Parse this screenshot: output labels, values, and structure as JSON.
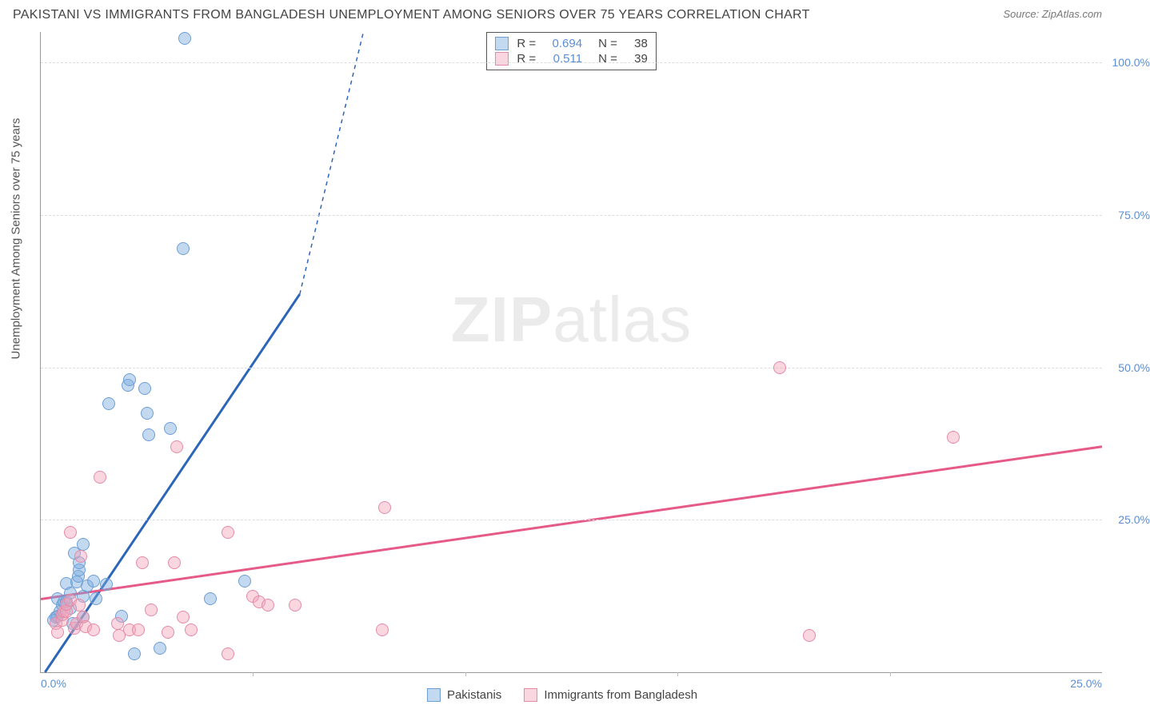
{
  "header": {
    "title": "PAKISTANI VS IMMIGRANTS FROM BANGLADESH UNEMPLOYMENT AMONG SENIORS OVER 75 YEARS CORRELATION CHART",
    "source": "Source: ZipAtlas.com"
  },
  "chart": {
    "type": "scatter",
    "ylabel": "Unemployment Among Seniors over 75 years",
    "xlim": [
      0,
      25
    ],
    "ylim": [
      0,
      105
    ],
    "x_tick_labels": [
      "0.0%",
      "25.0%"
    ],
    "x_tick_positions": [
      0,
      25
    ],
    "x_minor_ticks": [
      5,
      10,
      15,
      20
    ],
    "y_tick_labels": [
      "25.0%",
      "50.0%",
      "75.0%",
      "100.0%"
    ],
    "y_tick_positions": [
      25,
      50,
      75,
      100
    ],
    "background_color": "#ffffff",
    "grid_color_h": "#dddddd",
    "grid_color_v": "#eeeeee",
    "axis_color": "#999999",
    "marker_radius": 8,
    "marker_border_width": 1.5,
    "series": [
      {
        "name": "Pakistanis",
        "fill": "rgba(122,170,222,0.45)",
        "stroke": "#6d9fd4",
        "trend_color": "#2d66b8",
        "trend_width": 3,
        "trend": {
          "x1": 0.1,
          "y1": 0,
          "x2": 6.1,
          "y2": 62,
          "dash_to_x": 7.6,
          "dash_to_y": 105
        },
        "R": "0.694",
        "N": "38",
        "points": [
          [
            0.3,
            8.5
          ],
          [
            0.35,
            9.0
          ],
          [
            0.4,
            9.2
          ],
          [
            0.4,
            12.0
          ],
          [
            0.45,
            10.0
          ],
          [
            0.5,
            11.0
          ],
          [
            0.55,
            11.5
          ],
          [
            0.6,
            11.5
          ],
          [
            0.6,
            14.5
          ],
          [
            0.7,
            13.0
          ],
          [
            0.7,
            10.5
          ],
          [
            0.75,
            8.0
          ],
          [
            0.8,
            19.5
          ],
          [
            0.85,
            14.8
          ],
          [
            0.88,
            15.7
          ],
          [
            0.9,
            16.8
          ],
          [
            0.9,
            17.9
          ],
          [
            1.0,
            21.0
          ],
          [
            1.0,
            12.5
          ],
          [
            1.0,
            9.0
          ],
          [
            1.1,
            14.2
          ],
          [
            1.25,
            15.0
          ],
          [
            1.3,
            12.0
          ],
          [
            1.55,
            14.4
          ],
          [
            1.6,
            44.0
          ],
          [
            1.9,
            9.2
          ],
          [
            2.05,
            47.0
          ],
          [
            2.1,
            48.0
          ],
          [
            2.2,
            3.0
          ],
          [
            2.45,
            46.5
          ],
          [
            2.5,
            42.5
          ],
          [
            2.55,
            39.0
          ],
          [
            2.8,
            4.0
          ],
          [
            3.05,
            40.0
          ],
          [
            3.35,
            69.5
          ],
          [
            3.4,
            104.0
          ],
          [
            4.0,
            12.0
          ],
          [
            4.8,
            15.0
          ]
        ]
      },
      {
        "name": "Immigrants from Bangladesh",
        "fill": "rgba(243,165,186,0.45)",
        "stroke": "#e48aa5",
        "trend_color": "#e65a87",
        "trend_width": 3,
        "trend": {
          "x1": 0,
          "y1": 12,
          "x2": 25,
          "y2": 37
        },
        "R": "0.511",
        "N": "39",
        "points": [
          [
            0.35,
            8.0
          ],
          [
            0.4,
            6.5
          ],
          [
            0.5,
            8.5
          ],
          [
            0.5,
            9.5
          ],
          [
            0.55,
            10.0
          ],
          [
            0.6,
            10.0
          ],
          [
            0.6,
            11.2
          ],
          [
            0.7,
            11.8
          ],
          [
            0.7,
            23.0
          ],
          [
            0.8,
            7.2
          ],
          [
            0.85,
            8.0
          ],
          [
            0.9,
            11.0
          ],
          [
            0.95,
            19.0
          ],
          [
            1.0,
            9.0
          ],
          [
            1.05,
            7.5
          ],
          [
            1.25,
            7.0
          ],
          [
            1.4,
            32.0
          ],
          [
            1.8,
            8.0
          ],
          [
            1.85,
            6.0
          ],
          [
            2.1,
            7.0
          ],
          [
            2.3,
            7.0
          ],
          [
            2.4,
            18.0
          ],
          [
            2.6,
            10.2
          ],
          [
            3.0,
            6.5
          ],
          [
            3.15,
            18.0
          ],
          [
            3.2,
            37.0
          ],
          [
            3.35,
            9.0
          ],
          [
            3.55,
            7.0
          ],
          [
            4.4,
            3.0
          ],
          [
            4.4,
            23.0
          ],
          [
            5.0,
            12.5
          ],
          [
            5.15,
            11.5
          ],
          [
            5.35,
            11.0
          ],
          [
            6.0,
            11.0
          ],
          [
            8.05,
            7.0
          ],
          [
            8.1,
            27.0
          ],
          [
            17.4,
            50.0
          ],
          [
            18.1,
            6.0
          ],
          [
            21.5,
            38.5
          ]
        ]
      }
    ],
    "stats_legend": {
      "r_label": "R =",
      "n_label": "N ="
    },
    "bottom_legend": {
      "label1": "Pakistanis",
      "label2": "Immigrants from Bangladesh"
    },
    "watermark": {
      "part1": "ZIP",
      "part2": "atlas"
    }
  }
}
